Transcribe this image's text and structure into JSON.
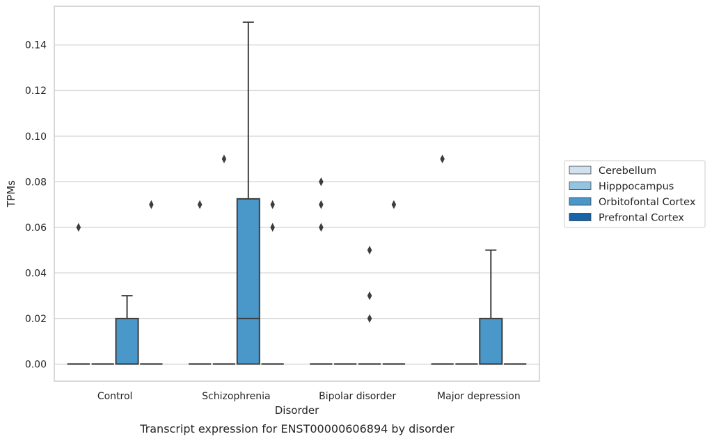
{
  "chart_data": {
    "type": "box",
    "caption": "Transcript expression for ENST00000606894 by disorder",
    "xlabel": "Disorder",
    "ylabel": "TPMs",
    "categories": [
      "Control",
      "Schizophrenia",
      "Bipolar disorder",
      "Major depression"
    ],
    "ylim": [
      -0.0075,
      0.157
    ],
    "yticks": [
      0.0,
      0.02,
      0.04,
      0.06,
      0.08,
      0.1,
      0.12,
      0.14
    ],
    "ytick_labels": [
      "0.00",
      "0.02",
      "0.04",
      "0.06",
      "0.08",
      "0.10",
      "0.12",
      "0.14"
    ],
    "grid": "horizontal",
    "legend_position": "right",
    "colors": {
      "Cerebellum": "#d0e1f2",
      "Hipppocampus": "#94c4df",
      "Orbitofontal Cortex": "#4a98c9",
      "Prefrontal Cortex": "#1764ab",
      "line": "#3d3d3d",
      "grid": "#cccccc"
    },
    "series": [
      {
        "name": "Cerebellum",
        "boxes": [
          {
            "q1": 0,
            "median": 0,
            "q3": 0,
            "whislo": 0,
            "whishi": 0,
            "fliers": [
              0.06
            ]
          },
          {
            "q1": 0,
            "median": 0,
            "q3": 0,
            "whislo": 0,
            "whishi": 0,
            "fliers": [
              0.07
            ]
          },
          {
            "q1": 0,
            "median": 0,
            "q3": 0,
            "whislo": 0,
            "whishi": 0,
            "fliers": [
              0.06,
              0.07,
              0.08
            ]
          },
          {
            "q1": 0,
            "median": 0,
            "q3": 0,
            "whislo": 0,
            "whishi": 0,
            "fliers": [
              0.09
            ]
          }
        ]
      },
      {
        "name": "Hipppocampus",
        "boxes": [
          {
            "q1": 0,
            "median": 0,
            "q3": 0,
            "whislo": 0,
            "whishi": 0,
            "fliers": []
          },
          {
            "q1": 0,
            "median": 0,
            "q3": 0,
            "whislo": 0,
            "whishi": 0,
            "fliers": [
              0.09
            ]
          },
          {
            "q1": 0,
            "median": 0,
            "q3": 0,
            "whislo": 0,
            "whishi": 0,
            "fliers": []
          },
          {
            "q1": 0,
            "median": 0,
            "q3": 0,
            "whislo": 0,
            "whishi": 0,
            "fliers": []
          }
        ]
      },
      {
        "name": "Orbitofontal Cortex",
        "boxes": [
          {
            "q1": 0,
            "median": 0,
            "q3": 0.02,
            "whislo": 0,
            "whishi": 0.03,
            "fliers": []
          },
          {
            "q1": 0,
            "median": 0.02,
            "q3": 0.0725,
            "whislo": 0,
            "whishi": 0.15,
            "fliers": []
          },
          {
            "q1": 0,
            "median": 0,
            "q3": 0,
            "whislo": 0,
            "whishi": 0,
            "fliers": [
              0.02,
              0.03,
              0.05
            ]
          },
          {
            "q1": 0,
            "median": 0,
            "q3": 0.02,
            "whislo": 0,
            "whishi": 0.05,
            "fliers": []
          }
        ]
      },
      {
        "name": "Prefrontal Cortex",
        "boxes": [
          {
            "q1": 0,
            "median": 0,
            "q3": 0,
            "whislo": 0,
            "whishi": 0,
            "fliers": [
              0.07
            ]
          },
          {
            "q1": 0,
            "median": 0,
            "q3": 0,
            "whislo": 0,
            "whishi": 0,
            "fliers": [
              0.06,
              0.07
            ]
          },
          {
            "q1": 0,
            "median": 0,
            "q3": 0,
            "whislo": 0,
            "whishi": 0,
            "fliers": [
              0.07
            ]
          },
          {
            "q1": 0,
            "median": 0,
            "q3": 0,
            "whislo": 0,
            "whishi": 0,
            "fliers": []
          }
        ]
      }
    ]
  }
}
